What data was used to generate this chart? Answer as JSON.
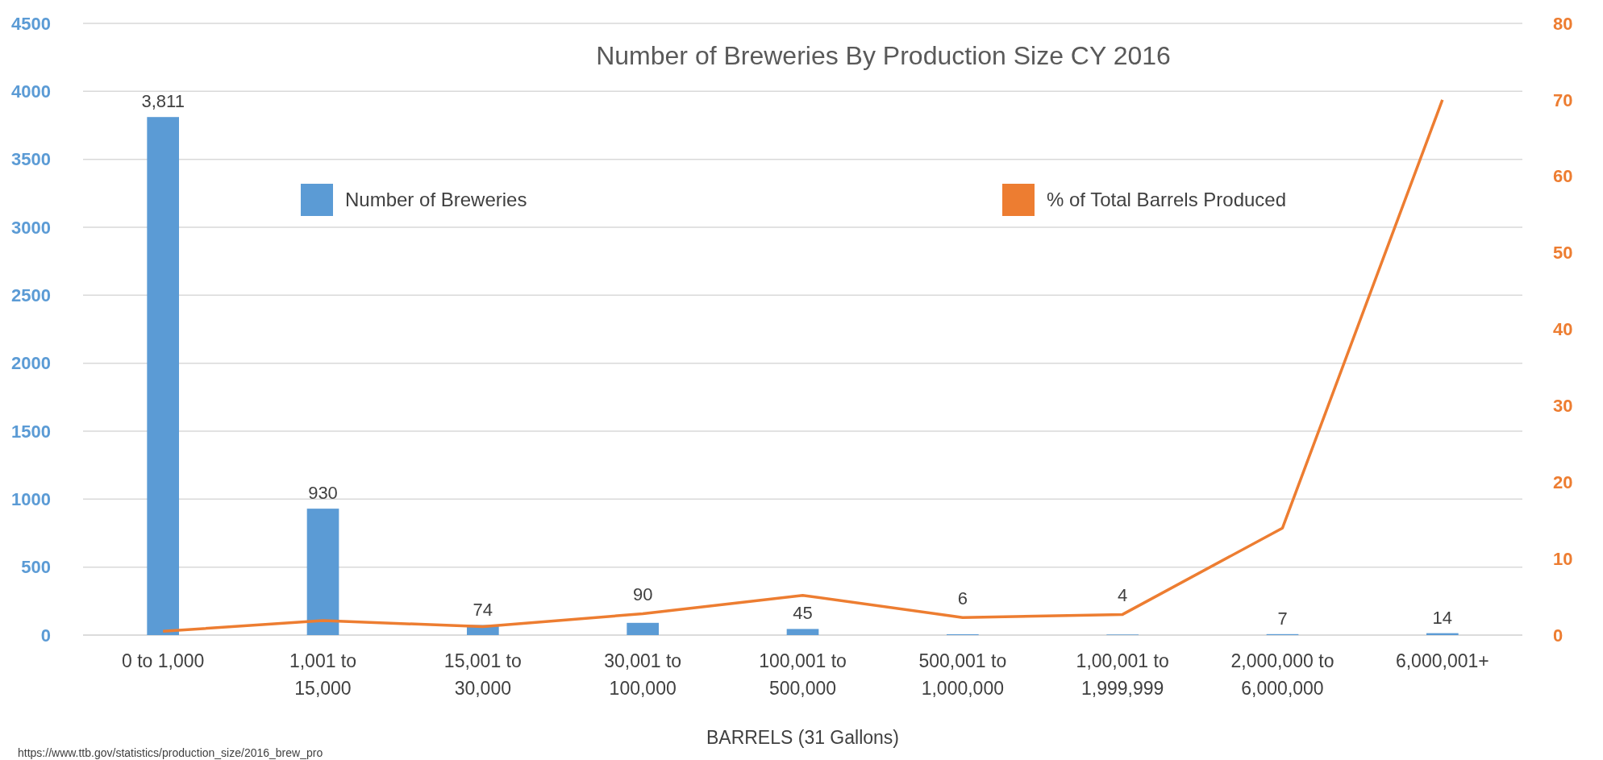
{
  "chart_data": {
    "type": "bar",
    "title": "Number of Breweries By Production Size CY 2016",
    "xlabel": "BARRELS (31 Gallons)",
    "categories": [
      "0 to 1,000",
      "1,001 to 15,000",
      "15,001 to 30,000",
      "30,001 to 100,000",
      "100,001 to 500,000",
      "500,001 to 1,000,000",
      "1,00,001 to 1,999,999",
      "2,000,000 to 6,000,000",
      "6,000,001+"
    ],
    "series": [
      {
        "name": "Number of Breweries",
        "color": "#5b9bd5",
        "values": [
          3811,
          930,
          74,
          90,
          45,
          6,
          4,
          7,
          14
        ],
        "value_labels": [
          "3,811",
          "930",
          "74",
          "90",
          "45",
          "6",
          "4",
          "7",
          "14"
        ]
      },
      {
        "name": "% of Total Barrels Produced",
        "type": "line",
        "axis": "y2",
        "color": "#ed7d31",
        "values": [
          0.5,
          1.9,
          1.1,
          2.8,
          5.2,
          2.3,
          2.7,
          14,
          70
        ]
      }
    ],
    "ylim": [
      0,
      4500
    ],
    "yticks": [
      0,
      500,
      1000,
      1500,
      2000,
      2500,
      3000,
      3500,
      4000,
      4500
    ],
    "y2lim": [
      0,
      80
    ],
    "y2ticks": [
      0,
      10,
      20,
      30,
      40,
      50,
      60,
      70,
      80
    ],
    "grid": "y",
    "legend": "top",
    "marker": "none",
    "line_style": "solid",
    "annotations": [
      "https://www.ttb.gov/statistics/production_size/2016_brew_pro"
    ]
  }
}
